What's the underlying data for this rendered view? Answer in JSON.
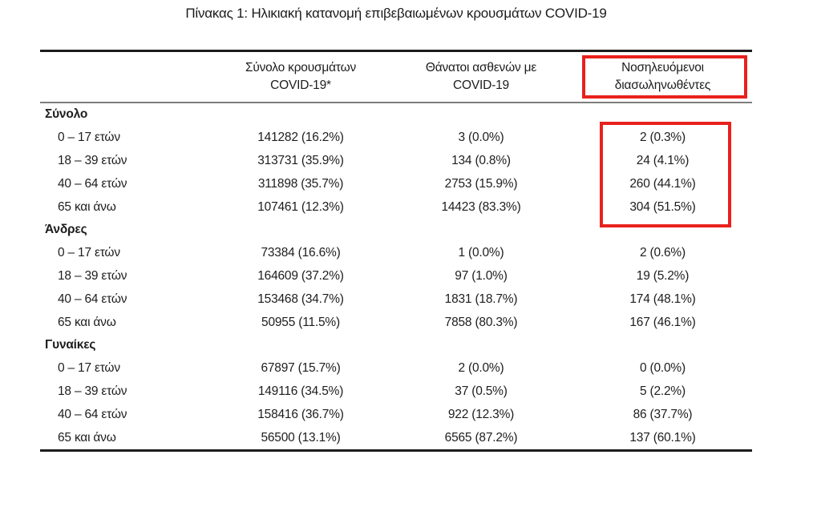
{
  "title": "Πίνακας 1: Ηλικιακή κατανομή επιβεβαιωμένων κρουσμάτων COVID-19",
  "highlight": {
    "color": "#e8211d"
  },
  "table": {
    "columns": [
      {
        "line1": "Σύνολο κρουσμάτων",
        "line2": "COVID-19*"
      },
      {
        "line1": "Θάνατοι ασθενών με",
        "line2": "COVID-19"
      },
      {
        "line1": "Νοσηλευόμενοι",
        "line2": "διασωληνωθέντες",
        "highlighted": true
      }
    ],
    "sections": [
      {
        "label": "Σύνολο",
        "intubated_highlighted": true,
        "rows": [
          {
            "age": "0 – 17 ετών",
            "cases": "141282 (16.2%)",
            "deaths": "3 (0.0%)",
            "intubated": "2 (0.3%)"
          },
          {
            "age": "18 – 39 ετών",
            "cases": "313731 (35.9%)",
            "deaths": "134 (0.8%)",
            "intubated": "24 (4.1%)"
          },
          {
            "age": "40 – 64 ετών",
            "cases": "311898 (35.7%)",
            "deaths": "2753 (15.9%)",
            "intubated": "260 (44.1%)"
          },
          {
            "age": "65 και άνω",
            "cases": "107461 (12.3%)",
            "deaths": "14423 (83.3%)",
            "intubated": "304 (51.5%)"
          }
        ]
      },
      {
        "label": "Άνδρες",
        "rows": [
          {
            "age": "0 – 17 ετών",
            "cases": "73384 (16.6%)",
            "deaths": "1 (0.0%)",
            "intubated": "2 (0.6%)"
          },
          {
            "age": "18 – 39 ετών",
            "cases": "164609 (37.2%)",
            "deaths": "97 (1.0%)",
            "intubated": "19 (5.2%)"
          },
          {
            "age": "40 – 64 ετών",
            "cases": "153468 (34.7%)",
            "deaths": "1831 (18.7%)",
            "intubated": "174 (48.1%)"
          },
          {
            "age": "65 και άνω",
            "cases": "50955 (11.5%)",
            "deaths": "7858 (80.3%)",
            "intubated": "167 (46.1%)"
          }
        ]
      },
      {
        "label": "Γυναίκες",
        "rows": [
          {
            "age": "0 – 17 ετών",
            "cases": "67897 (15.7%)",
            "deaths": "2 (0.0%)",
            "intubated": "0 (0.0%)"
          },
          {
            "age": "18 – 39 ετών",
            "cases": "149116 (34.5%)",
            "deaths": "37 (0.5%)",
            "intubated": "5 (2.2%)"
          },
          {
            "age": "40 – 64 ετών",
            "cases": "158416 (36.7%)",
            "deaths": "922 (12.3%)",
            "intubated": "86 (37.7%)"
          },
          {
            "age": "65 και άνω",
            "cases": "56500 (13.1%)",
            "deaths": "6565 (87.2%)",
            "intubated": "137 (60.1%)"
          }
        ]
      }
    ]
  }
}
